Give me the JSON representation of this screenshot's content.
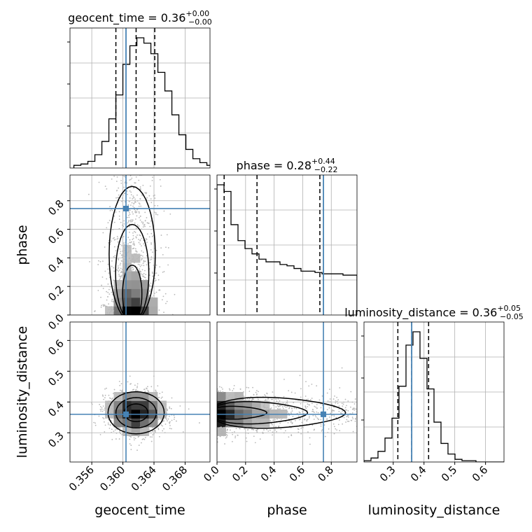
{
  "chart_data": {
    "type": "corner",
    "parameters": [
      "geocent_time",
      "phase",
      "luminosity_distance"
    ],
    "truths": {
      "geocent_time": 0.3604,
      "phase": 0.745,
      "luminosity_distance": 0.36
    },
    "truth_color": "#4682b4",
    "grid": true,
    "titles": {
      "geocent_time": {
        "prefix": "geocent_time = 0.36",
        "plus": "+0.00",
        "minus": "−0.00"
      },
      "phase": {
        "prefix": "phase = 0.28",
        "plus": "+0.44",
        "minus": "−0.22"
      },
      "luminosity_distance": {
        "prefix": "luminosity_distance = 0.36",
        "plus": "+0.05",
        "minus": "−0.05"
      }
    },
    "ranges": {
      "geocent_time": [
        0.3532,
        0.3712
      ],
      "phase": [
        0.0,
        0.98
      ],
      "luminosity_distance": [
        0.205,
        0.66
      ]
    },
    "ticks": {
      "geocent_time": {
        "values": [
          0.356,
          0.36,
          0.364,
          0.368
        ],
        "labels": [
          "0.356",
          "0.360",
          "0.364",
          "0.368"
        ]
      },
      "phase": {
        "values": [
          0.0,
          0.2,
          0.4,
          0.6,
          0.8
        ],
        "labels": [
          "0.0",
          "0.2",
          "0.4",
          "0.6",
          "0.8"
        ]
      },
      "luminosity_distance": {
        "values": [
          0.3,
          0.4,
          0.5,
          0.6
        ],
        "labels": [
          "0.3",
          "0.4",
          "0.5",
          "0.6"
        ]
      }
    },
    "quantiles": {
      "geocent_time": [
        0.3591,
        0.3617,
        0.3641
      ],
      "phase": [
        0.05,
        0.28,
        0.72
      ],
      "luminosity_distance": [
        0.315,
        0.36,
        0.415
      ]
    },
    "marginals": {
      "geocent_time": {
        "edges_start": 0.3537,
        "bin_width": 0.0009,
        "counts": [
          2,
          3,
          5,
          10,
          20,
          37,
          55,
          78,
          92,
          98,
          94,
          86,
          72,
          58,
          40,
          25,
          14,
          7,
          4,
          2
        ]
      },
      "phase": {
        "edges_start": 0.0,
        "bin_width": 0.049,
        "counts": [
          98,
          93,
          68,
          56,
          50,
          46,
          42,
          40,
          40,
          38,
          37,
          35,
          33,
          33,
          32,
          31,
          31,
          31,
          30,
          30
        ]
      },
      "luminosity_distance": {
        "edges_start": 0.205,
        "bin_width": 0.02275,
        "counts": [
          1,
          3,
          8,
          18,
          33,
          57,
          88,
          98,
          78,
          55,
          30,
          14,
          6,
          2,
          1,
          1,
          0,
          0,
          0,
          0
        ]
      }
    },
    "joint": [
      {
        "x": "geocent_time",
        "y": "phase",
        "x_mean": 0.3612,
        "x_sd": 0.00165,
        "y_mode": 0.0,
        "y_decay": 0.17,
        "y_floor": 0.3
      },
      {
        "x": "geocent_time",
        "y": "luminosity_distance",
        "x_mean": 0.3617,
        "x_sd": 0.0019,
        "y_mean": 0.365,
        "y_sd": 0.036
      },
      {
        "x": "phase",
        "y": "luminosity_distance",
        "x_mode": 0.0,
        "x_decay": 0.17,
        "x_floor": 0.3,
        "y_mean": 0.365,
        "y_sd": 0.034
      }
    ]
  }
}
